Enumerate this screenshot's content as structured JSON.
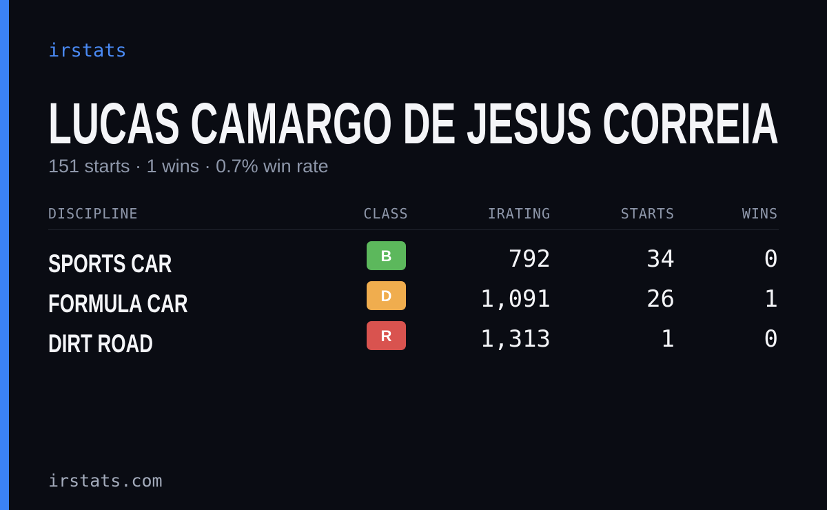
{
  "brand": "irstats",
  "title": "LUCAS CAMARGO DE JESUS CORREIA",
  "subtitle": "151 starts · 1 wins · 0.7% win rate",
  "table": {
    "headers": [
      "DISCIPLINE",
      "CLASS",
      "IRATING",
      "STARTS",
      "WINS"
    ],
    "rows": [
      {
        "discipline": "SPORTS CAR",
        "class": "B",
        "color": "#5cb85c",
        "irating": "792",
        "starts": "34",
        "wins": "0"
      },
      {
        "discipline": "FORMULA CAR",
        "class": "D",
        "color": "#f0ad4e",
        "irating": "1,091",
        "starts": "26",
        "wins": "1"
      },
      {
        "discipline": "DIRT ROAD",
        "class": "R",
        "color": "#d9534f",
        "irating": "1,313",
        "starts": "1",
        "wins": "0"
      }
    ]
  },
  "footer": "irstats.com"
}
